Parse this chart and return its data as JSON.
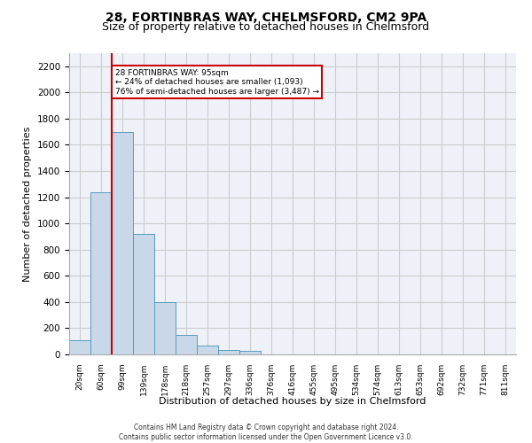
{
  "title_line1": "28, FORTINBRAS WAY, CHELMSFORD, CM2 9PA",
  "title_line2": "Size of property relative to detached houses in Chelmsford",
  "xlabel_bottom": "Distribution of detached houses by size in Chelmsford",
  "ylabel": "Number of detached properties",
  "bin_labels": [
    "20sqm",
    "60sqm",
    "99sqm",
    "139sqm",
    "178sqm",
    "218sqm",
    "257sqm",
    "297sqm",
    "336sqm",
    "376sqm",
    "416sqm",
    "455sqm",
    "495sqm",
    "534sqm",
    "574sqm",
    "613sqm",
    "653sqm",
    "692sqm",
    "732sqm",
    "771sqm",
    "811sqm"
  ],
  "bar_values": [
    110,
    1240,
    1700,
    920,
    400,
    150,
    65,
    35,
    25,
    0,
    0,
    0,
    0,
    0,
    0,
    0,
    0,
    0,
    0,
    0,
    0
  ],
  "bar_color": "#c8d8e8",
  "bar_edgecolor": "#5a9abf",
  "grid_color": "#cccccc",
  "bg_color": "#eef2f8",
  "property_sqm": 95,
  "annotation_text": "28 FORTINBRAS WAY: 95sqm\n← 24% of detached houses are smaller (1,093)\n76% of semi-detached houses are larger (3,487) →",
  "annotation_box_color": "#ffffff",
  "annotation_border_color": "#cc0000",
  "ylim": [
    0,
    2300
  ],
  "yticks": [
    0,
    200,
    400,
    600,
    800,
    1000,
    1200,
    1400,
    1600,
    1800,
    2000,
    2200
  ],
  "footer_line1": "Contains HM Land Registry data © Crown copyright and database right 2024.",
  "footer_line2": "Contains public sector information licensed under the Open Government Licence v3.0."
}
